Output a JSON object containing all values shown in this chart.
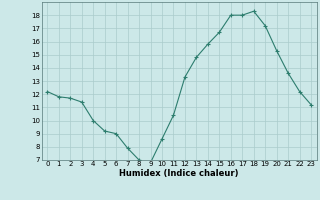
{
  "x": [
    0,
    1,
    2,
    3,
    4,
    5,
    6,
    7,
    8,
    9,
    10,
    11,
    12,
    13,
    14,
    15,
    16,
    17,
    18,
    19,
    20,
    21,
    22,
    23
  ],
  "y": [
    12.2,
    11.8,
    11.7,
    11.4,
    10.0,
    9.2,
    9.0,
    7.9,
    7.0,
    6.8,
    8.6,
    10.4,
    13.3,
    14.8,
    15.8,
    16.7,
    18.0,
    18.0,
    18.3,
    17.2,
    15.3,
    13.6,
    12.2,
    11.2
  ],
  "xlabel": "Humidex (Indice chaleur)",
  "ylim": [
    7,
    19
  ],
  "yticks": [
    7,
    8,
    9,
    10,
    11,
    12,
    13,
    14,
    15,
    16,
    17,
    18
  ],
  "xticks": [
    0,
    1,
    2,
    3,
    4,
    5,
    6,
    7,
    8,
    9,
    10,
    11,
    12,
    13,
    14,
    15,
    16,
    17,
    18,
    19,
    20,
    21,
    22,
    23
  ],
  "line_color": "#2d7d6e",
  "marker": "+",
  "bg_color": "#cce8e8",
  "grid_color": "#aacccc",
  "xlabel_fontsize": 6.0,
  "tick_fontsize": 5.0
}
